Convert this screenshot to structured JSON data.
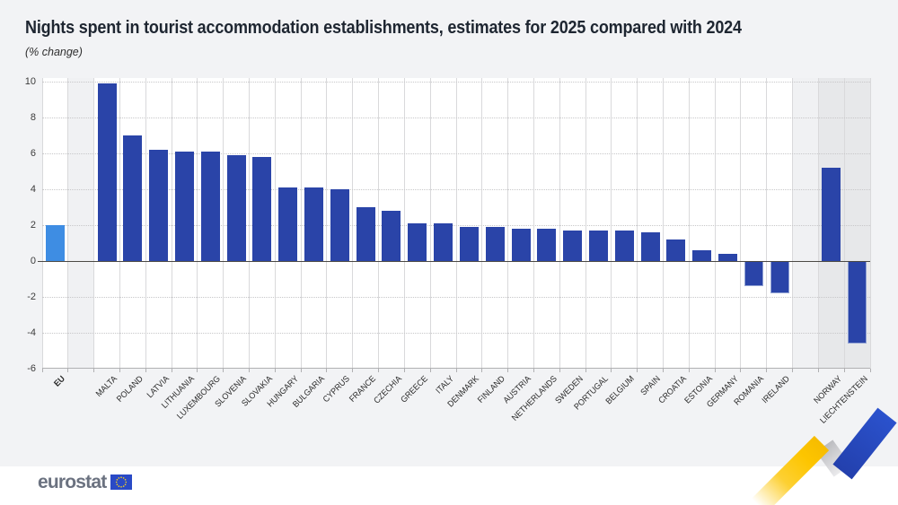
{
  "title": "Nights spent in tourist accommodation establishments, estimates for 2025 compared with 2024",
  "subtitle": "(% change)",
  "footer": {
    "brand": "eurostat"
  },
  "icons": {
    "flag": "eu-flag-icon",
    "decoration": "eurostat-ribbon-icon"
  },
  "chart_data": {
    "type": "bar",
    "title": "Nights spent in tourist accommodation establishments, estimates for 2025 compared with 2024",
    "xlabel": "",
    "ylabel": "% change",
    "ylim": [
      -6,
      10
    ],
    "yticks": [
      10,
      8,
      6,
      4,
      2,
      0,
      -2,
      -4,
      -6
    ],
    "grid": {
      "horizontal": "dotted",
      "vertical": "solid"
    },
    "legend": "none",
    "categories": [
      "EU",
      "MALTA",
      "POLAND",
      "LATVIA",
      "LITHUANIA",
      "LUXEMBOURG",
      "SLOVENIA",
      "SLOVAKIA",
      "HUNGARY",
      "BULGARIA",
      "CYPRUS",
      "FRANCE",
      "CZECHIA",
      "GREECE",
      "ITALY",
      "DENMARK",
      "FINLAND",
      "AUSTRIA",
      "NETHERLANDS",
      "SWEDEN",
      "PORTUGAL",
      "BELGIUM",
      "SPAIN",
      "CROATIA",
      "ESTONIA",
      "GERMANY",
      "ROMANIA",
      "IRELAND",
      "NORWAY",
      "LIECHTENSTEIN"
    ],
    "values": [
      2.0,
      9.9,
      7.0,
      6.2,
      6.1,
      6.1,
      5.9,
      5.8,
      4.1,
      4.1,
      4.0,
      3.0,
      2.8,
      2.1,
      2.1,
      1.9,
      1.9,
      1.8,
      1.8,
      1.7,
      1.7,
      1.7,
      1.6,
      1.2,
      0.6,
      0.4,
      -1.4,
      -1.8,
      5.2,
      -4.6
    ],
    "highlight_bar": "EU",
    "separator_after": [
      "EU",
      "IRELAND"
    ],
    "shaded_categories": [
      "NORWAY",
      "LIECHTENSTEIN"
    ],
    "colors": {
      "bar": "#2a44a8",
      "eu_bar": "#3e8de3",
      "shaded_band": "#e7e8ea",
      "separator_band": "#f0f1f3",
      "plot_background": "#ffffff",
      "page_background": "#f2f3f5",
      "zero_line": "#4b4945",
      "gridline": "#c7c7c9"
    }
  }
}
